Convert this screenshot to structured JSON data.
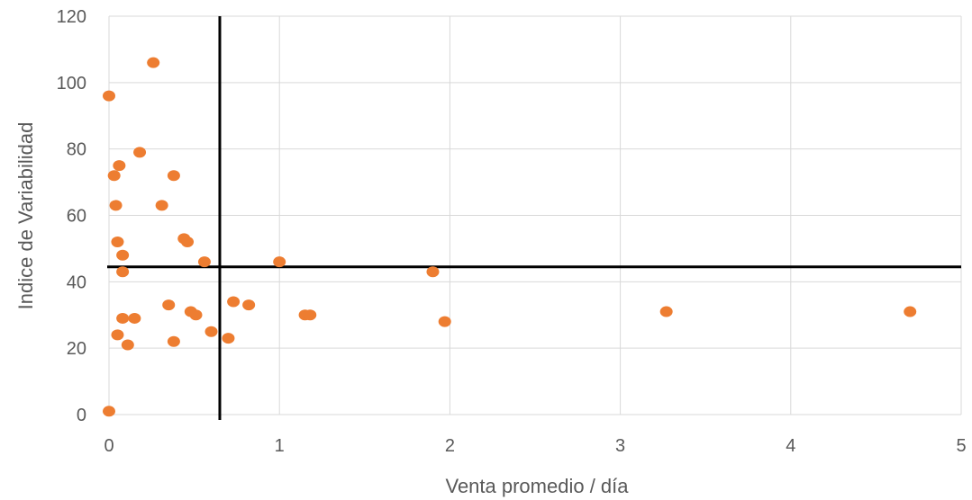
{
  "chart_data": {
    "type": "scatter",
    "title": "",
    "xlabel": "Venta promedio / día",
    "ylabel": "Indice de Variabilidad",
    "xlim": [
      0,
      5
    ],
    "ylim": [
      0,
      120
    ],
    "x_ticks": [
      0,
      1,
      2,
      3,
      4,
      5
    ],
    "y_ticks": [
      0,
      20,
      40,
      60,
      80,
      100,
      120
    ],
    "x_tick_labels": [
      "0",
      "1",
      "2",
      "3",
      "4",
      "5"
    ],
    "y_tick_labels": [
      "0",
      "20",
      "40",
      "60",
      "80",
      "100",
      "120"
    ],
    "grid": true,
    "legend": "none",
    "marker_color": "#ED7D31",
    "reference_lines": {
      "x": 0.65,
      "y": 44.5
    },
    "points": [
      {
        "x": 0.0,
        "y": 1
      },
      {
        "x": 0.0,
        "y": 96
      },
      {
        "x": 0.03,
        "y": 72
      },
      {
        "x": 0.04,
        "y": 63
      },
      {
        "x": 0.05,
        "y": 52
      },
      {
        "x": 0.06,
        "y": 75
      },
      {
        "x": 0.08,
        "y": 48
      },
      {
        "x": 0.08,
        "y": 43
      },
      {
        "x": 0.08,
        "y": 29
      },
      {
        "x": 0.05,
        "y": 24
      },
      {
        "x": 0.11,
        "y": 21
      },
      {
        "x": 0.15,
        "y": 29
      },
      {
        "x": 0.18,
        "y": 79
      },
      {
        "x": 0.26,
        "y": 106
      },
      {
        "x": 0.31,
        "y": 63
      },
      {
        "x": 0.35,
        "y": 33
      },
      {
        "x": 0.38,
        "y": 72
      },
      {
        "x": 0.38,
        "y": 22
      },
      {
        "x": 0.44,
        "y": 53
      },
      {
        "x": 0.46,
        "y": 52
      },
      {
        "x": 0.48,
        "y": 31
      },
      {
        "x": 0.51,
        "y": 30
      },
      {
        "x": 0.56,
        "y": 46
      },
      {
        "x": 0.6,
        "y": 25
      },
      {
        "x": 0.7,
        "y": 23
      },
      {
        "x": 0.73,
        "y": 34
      },
      {
        "x": 0.82,
        "y": 33
      },
      {
        "x": 1.0,
        "y": 46
      },
      {
        "x": 1.15,
        "y": 30
      },
      {
        "x": 1.18,
        "y": 30
      },
      {
        "x": 1.9,
        "y": 43
      },
      {
        "x": 1.97,
        "y": 28
      },
      {
        "x": 3.27,
        "y": 31
      },
      {
        "x": 4.7,
        "y": 31
      }
    ]
  }
}
